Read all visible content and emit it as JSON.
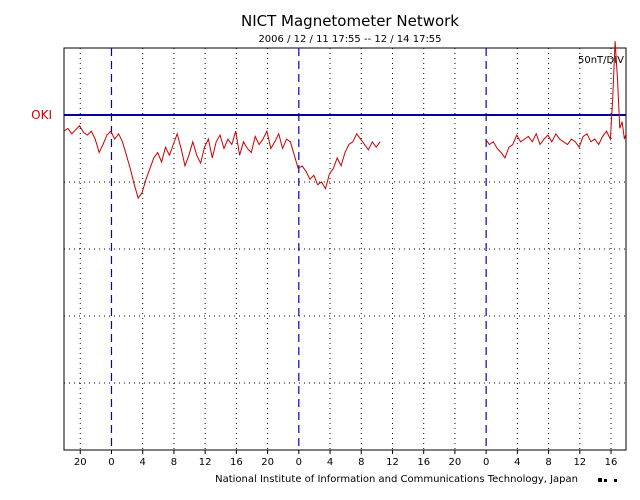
{
  "chart_data": {
    "type": "line",
    "title": "NICT Magnetometer Network",
    "subtitle": "2006 / 12 / 11    17:55 -- 12 / 14    17:55",
    "scale_label": "50nT/DIV",
    "footer": "National Institute of Information and Communications Technology, Japan",
    "x_tick_labels": [
      "20",
      "0",
      "4",
      "8",
      "12",
      "16",
      "20",
      "0",
      "4",
      "8",
      "12",
      "16",
      "20",
      "0",
      "4",
      "8",
      "12",
      "16"
    ],
    "x_tick_hours": [
      2.083,
      6.083,
      10.083,
      14.083,
      18.083,
      22.083,
      26.083,
      30.083,
      34.083,
      38.083,
      42.083,
      46.083,
      50.083,
      54.083,
      58.083,
      62.083,
      66.083,
      70.083
    ],
    "day_boundaries_hours": [
      6.083,
      30.083,
      54.083
    ],
    "xlim_hours": [
      0,
      72
    ],
    "y_divisions": 5,
    "grid": true,
    "baseline_color": "#000099",
    "series_color": "#cc0000",
    "day_line_color": "#0000cc",
    "series": [
      {
        "name": "OKI",
        "label_color": "#cc0000",
        "baseline_nT": 0,
        "unit": "nT",
        "x_hours": [
          0.0,
          0.5,
          1.0,
          1.5,
          2.0,
          2.5,
          3.0,
          3.5,
          4.0,
          4.5,
          5.0,
          5.5,
          6.0,
          6.5,
          7.0,
          7.5,
          8.0,
          8.5,
          9.0,
          9.5,
          10.0,
          10.5,
          11.0,
          11.5,
          12.0,
          12.5,
          13.0,
          13.5,
          14.0,
          14.5,
          15.0,
          15.5,
          16.0,
          16.5,
          17.0,
          17.5,
          18.0,
          18.5,
          19.0,
          19.5,
          20.0,
          20.5,
          21.0,
          21.5,
          22.0,
          22.5,
          23.0,
          23.5,
          24.0,
          24.5,
          25.0,
          25.5,
          26.0,
          26.5,
          27.0,
          27.5,
          28.0,
          28.5,
          29.0,
          29.5,
          30.0,
          30.5,
          31.0,
          31.5,
          32.0,
          32.5,
          33.0,
          33.5,
          34.0,
          34.5,
          35.0,
          35.5,
          36.0,
          36.5,
          37.0,
          37.5,
          38.0,
          38.5,
          39.0,
          39.5,
          40.0,
          40.5,
          null,
          54.0,
          54.5,
          55.0,
          55.5,
          56.0,
          56.5,
          57.0,
          57.5,
          58.0,
          58.5,
          59.0,
          59.5,
          60.0,
          60.5,
          61.0,
          61.5,
          62.0,
          62.5,
          63.0,
          63.5,
          64.0,
          64.5,
          65.0,
          65.5,
          66.0,
          66.5,
          67.0,
          67.5,
          68.0,
          68.5,
          69.0,
          69.5,
          70.0,
          70.3,
          70.6,
          70.9,
          71.2,
          71.5,
          71.8,
          72.0
        ],
        "values_nT": [
          -12,
          -10,
          -14,
          -11,
          -8,
          -13,
          -15,
          -12,
          -18,
          -28,
          -22,
          -15,
          -12,
          -18,
          -14,
          -20,
          -30,
          -40,
          -52,
          -62,
          -58,
          -48,
          -40,
          -32,
          -28,
          -35,
          -24,
          -30,
          -22,
          -14,
          -25,
          -38,
          -30,
          -20,
          -30,
          -36,
          -24,
          -18,
          -32,
          -20,
          -15,
          -25,
          -18,
          -22,
          -12,
          -30,
          -20,
          -25,
          -28,
          -16,
          -22,
          -18,
          -12,
          -25,
          -20,
          -14,
          -25,
          -18,
          -20,
          -30,
          -40,
          -38,
          -42,
          -48,
          -45,
          -52,
          -50,
          -55,
          -44,
          -40,
          -32,
          -38,
          -28,
          -22,
          -20,
          -14,
          -18,
          -22,
          -26,
          -20,
          -24,
          -20,
          null,
          -18,
          -22,
          -20,
          -25,
          -28,
          -32,
          -24,
          -22,
          -15,
          -20,
          -18,
          -16,
          -20,
          -14,
          -22,
          -18,
          -15,
          -20,
          -14,
          -18,
          -20,
          -22,
          -18,
          -20,
          -24,
          -16,
          -14,
          -20,
          -18,
          -22,
          -16,
          -12,
          -18,
          12,
          55,
          28,
          -10,
          -5,
          -18,
          -14
        ]
      }
    ]
  }
}
